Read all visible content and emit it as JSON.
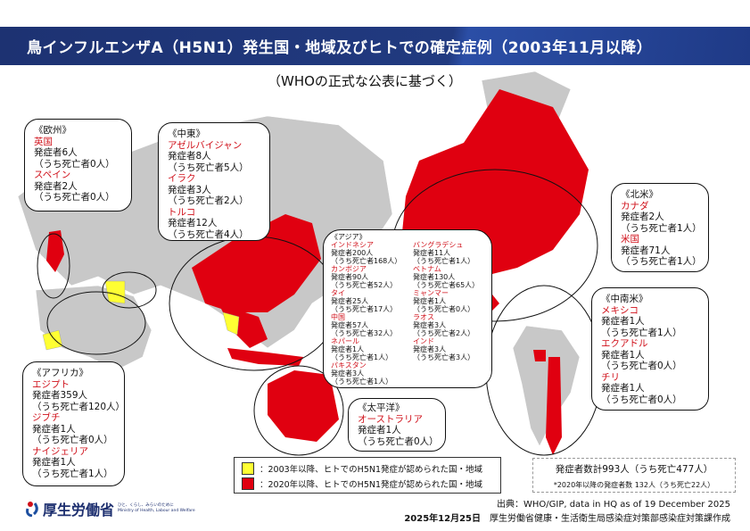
{
  "header": {
    "title": "鳥インフルエンザA（H5N1）発生国・地域及びヒトでの確定症例（2003年11月以降）",
    "subtitle": "（WHOの正式な公表に基づく）"
  },
  "colors": {
    "banner": "#1d3272",
    "red": "#e00010",
    "yellow": "#ffff33",
    "land": "#c8c8c8"
  },
  "regions": {
    "europe": {
      "title": "《欧州》",
      "countries": [
        {
          "name": "英国",
          "cases": "発症者6人",
          "deaths": "（うち死亡者0人）"
        },
        {
          "name": "スペイン",
          "cases": "発症者2人",
          "deaths": "（うち死亡者0人）"
        }
      ]
    },
    "middle_east": {
      "title": "《中東》",
      "countries": [
        {
          "name": "アゼルバイジャン",
          "cases": "発症者8人",
          "deaths": "（うち死亡者5人）"
        },
        {
          "name": "イラク",
          "cases": "発症者3人",
          "deaths": "（うち死亡者2人）"
        },
        {
          "name": "トルコ",
          "cases": "発症者12人",
          "deaths": "（うち死亡者4人）"
        }
      ]
    },
    "north_america": {
      "title": "《北米》",
      "countries": [
        {
          "name": "カナダ",
          "cases": "発症者2人",
          "deaths": "（うち死亡者1人）"
        },
        {
          "name": "米国",
          "cases": "発症者71人",
          "deaths": "（うち死亡者1人）"
        }
      ]
    },
    "asia": {
      "title": "《アジア》",
      "countries": [
        {
          "name": "インドネシア",
          "cases": "発症者200人",
          "deaths": "（うち死亡者168人）"
        },
        {
          "name": "カンボジア",
          "cases": "発症者90人",
          "deaths": "（うち死亡者52人）"
        },
        {
          "name": "タイ",
          "cases": "発症者25人",
          "deaths": "（うち死亡者17人）"
        },
        {
          "name": "中国",
          "cases": "発症者57人",
          "deaths": "（うち死亡者32人）"
        },
        {
          "name": "ネパール",
          "cases": "発症者1人",
          "deaths": "（うち死亡者1人）"
        },
        {
          "name": "パキスタン",
          "cases": "発症者3人",
          "deaths": "（うち死亡者1人）"
        },
        {
          "name": "バングラデシュ",
          "cases": "発症者11人",
          "deaths": "（うち死亡者1人）"
        },
        {
          "name": "ベトナム",
          "cases": "発症者130人",
          "deaths": "（うち死亡者65人）"
        },
        {
          "name": "ミャンマー",
          "cases": "発症者1人",
          "deaths": "（うち死亡者0人）"
        },
        {
          "name": "ラオス",
          "cases": "発症者3人",
          "deaths": "（うち死亡者2人）"
        },
        {
          "name": "インド",
          "cases": "発症者3人",
          "deaths": "（うち死亡者3人）"
        }
      ]
    },
    "latin_america": {
      "title": "《中南米》",
      "countries": [
        {
          "name": "メキシコ",
          "cases": "発症者1人",
          "deaths": "（うち死亡者1人）"
        },
        {
          "name": "エクアドル",
          "cases": "発症者1人",
          "deaths": "（うち死亡者0人）"
        },
        {
          "name": "チリ",
          "cases": "発症者1人",
          "deaths": "（うち死亡者0人）"
        }
      ]
    },
    "pacific": {
      "title": "《太平洋》",
      "countries": [
        {
          "name": "オーストラリア",
          "cases": "発症者1人",
          "deaths": "（うち死亡者0人）"
        }
      ]
    },
    "africa": {
      "title": "《アフリカ》",
      "countries": [
        {
          "name": "エジプト",
          "cases": "発症者359人",
          "deaths": "（うち死亡者120人）"
        },
        {
          "name": "ジブチ",
          "cases": "発症者1人",
          "deaths": "（うち死亡者0人）"
        },
        {
          "name": "ナイジェリア",
          "cases": "発症者1人",
          "deaths": "（うち死亡者1人）"
        }
      ]
    }
  },
  "legend": {
    "yellow": "：2003年以降、ヒトでのH5N1発症が認められた国・地域",
    "red": "：2020年以降、ヒトでのH5N1発症が認められた国・地域"
  },
  "totals": {
    "main": "発症者数計993人（うち死亡477人）",
    "note": "*2020年以降の発症者数 132人（うち死亡22人）"
  },
  "footer": {
    "source": "出典：WHO/GIP, data in HQ as of  19 December 2025",
    "date": "2025年12月25日",
    "author": "厚生労働省健康・生活衛生局感染症対策部感染症対策課作成"
  },
  "logo": {
    "name": "厚生労働省",
    "tagline": "ひと、くらし、みらいのために",
    "english": "Ministry of Health, Labour and Welfare"
  }
}
